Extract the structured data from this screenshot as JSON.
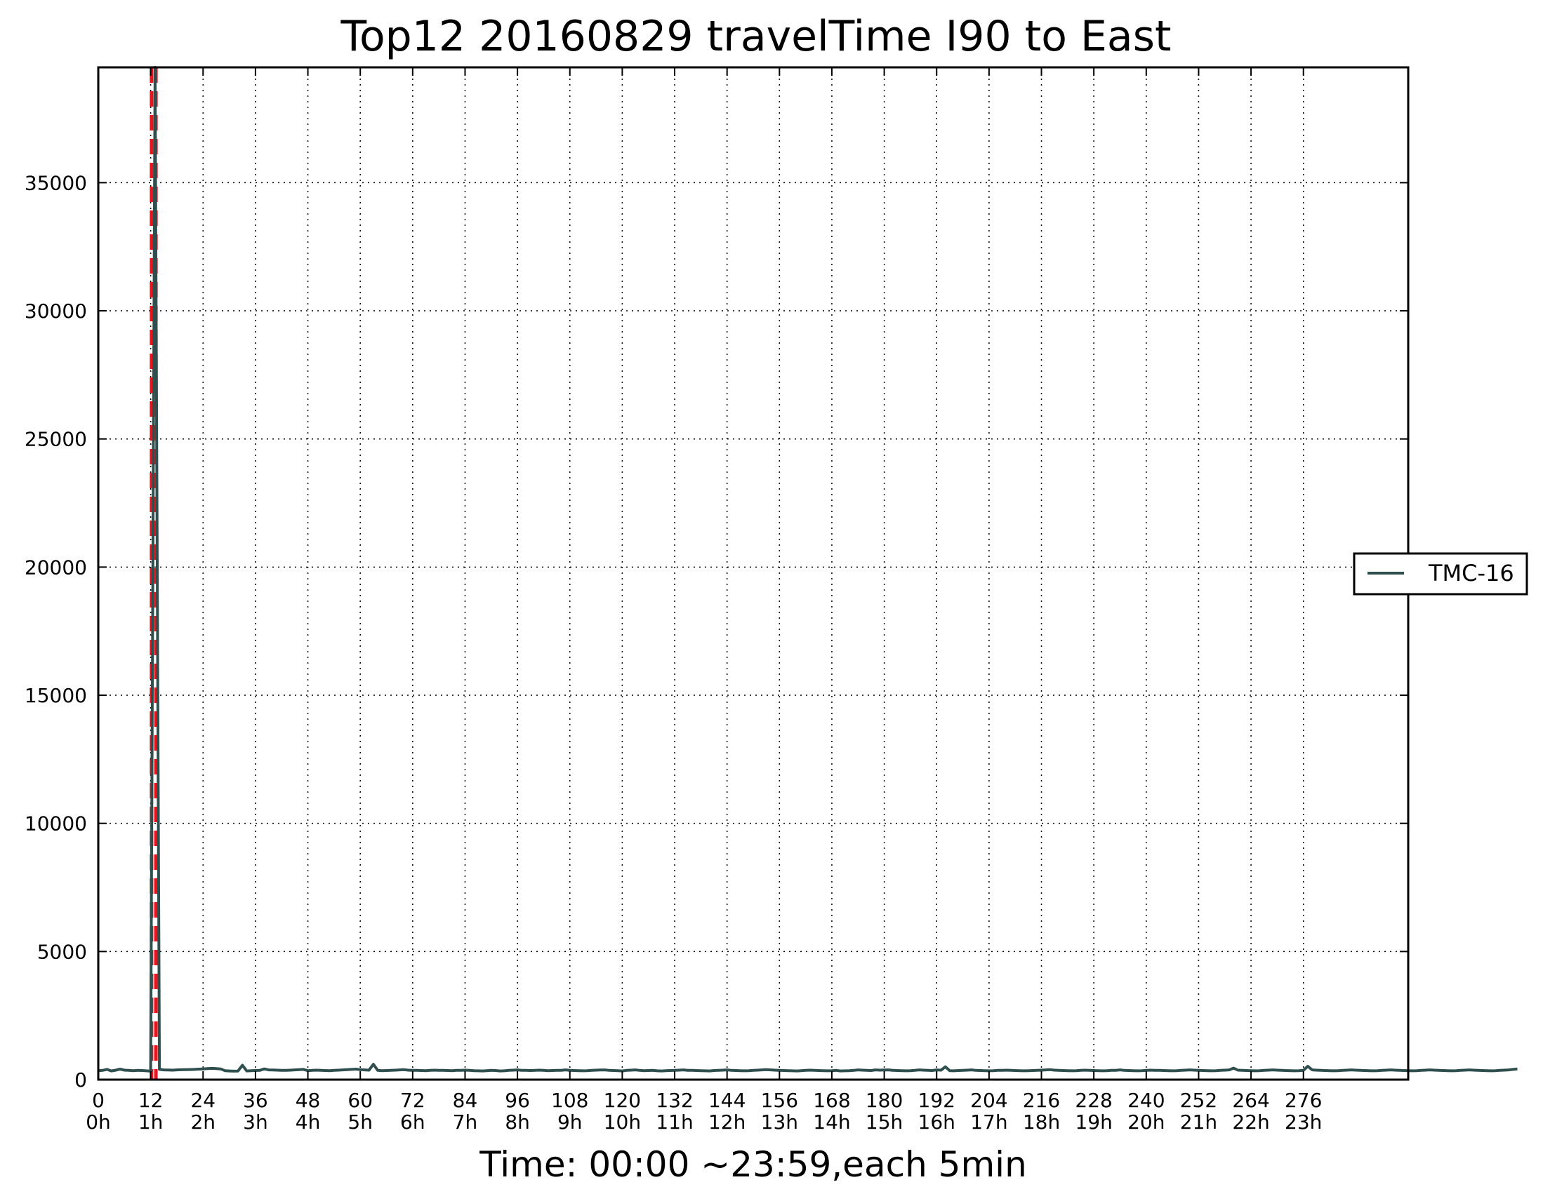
{
  "chart_data": {
    "type": "line",
    "title": "Top12 20160829 travelTime I90 to East",
    "xlabel": "Time: 00:00 ~23:59,each 5min",
    "ylabel": "",
    "xlim": [
      0,
      300
    ],
    "ylim": [
      0,
      39500
    ],
    "grid": true,
    "legend_position": "center-right, outside plot",
    "x_ticks": [
      0,
      12,
      24,
      36,
      48,
      60,
      72,
      84,
      96,
      108,
      120,
      132,
      144,
      156,
      168,
      180,
      192,
      204,
      216,
      228,
      240,
      252,
      264,
      276
    ],
    "x_tick_labels": [
      "0",
      "12",
      "24",
      "36",
      "48",
      "60",
      "72",
      "84",
      "96",
      "108",
      "120",
      "132",
      "144",
      "156",
      "168",
      "180",
      "192",
      "204",
      "216",
      "228",
      "240",
      "252",
      "264",
      "276"
    ],
    "x_tick_hours": [
      "0h",
      "1h",
      "2h",
      "3h",
      "4h",
      "5h",
      "6h",
      "7h",
      "8h",
      "9h",
      "10h",
      "11h",
      "12h",
      "13h",
      "14h",
      "15h",
      "16h",
      "17h",
      "18h",
      "19h",
      "20h",
      "21h",
      "22h",
      "23h"
    ],
    "y_ticks": [
      0,
      5000,
      10000,
      15000,
      20000,
      25000,
      30000,
      35000
    ],
    "y_tick_labels": [
      "0",
      "5000",
      "10000",
      "15000",
      "20000",
      "25000",
      "30000",
      "35000"
    ],
    "vlines": [
      {
        "x": 12.2,
        "color": "#e8141d",
        "style": "dashed"
      },
      {
        "x": 13.2,
        "color": "#e8141d",
        "style": "dashed"
      }
    ],
    "series": [
      {
        "name": "TMC-16",
        "color": "#2f4f4f",
        "x_start": 0,
        "x_step": 1,
        "values": [
          350,
          360,
          400,
          340,
          370,
          410,
          370,
          360,
          350,
          360,
          355,
          345,
          330,
          39500,
          400,
          380,
          375,
          370,
          380,
          385,
          390,
          395,
          400,
          410,
          420,
          430,
          440,
          430,
          420,
          350,
          340,
          330,
          335,
          560,
          340,
          350,
          355,
          360,
          420,
          380,
          375,
          370,
          365,
          360,
          370,
          380,
          390,
          400,
          350,
          360,
          370,
          365,
          355,
          350,
          360,
          370,
          380,
          390,
          400,
          410,
          390,
          380,
          370,
          600,
          360,
          350,
          355,
          360,
          370,
          380,
          390,
          370,
          365,
          360,
          355,
          350,
          360,
          370,
          365,
          360,
          355,
          350,
          360,
          365,
          370,
          360,
          350,
          345,
          340,
          350,
          360,
          355,
          340,
          345,
          360,
          370,
          380,
          365,
          360,
          355,
          360,
          370,
          360,
          350,
          355,
          360,
          365,
          380,
          360,
          355,
          350,
          345,
          350,
          360,
          370,
          375,
          380,
          360,
          355,
          350,
          340,
          360,
          370,
          380,
          360,
          350,
          355,
          360,
          345,
          340,
          350,
          355,
          360,
          370,
          380,
          365,
          360,
          355,
          350,
          345,
          340,
          355,
          360,
          370,
          380,
          360,
          355,
          350,
          345,
          350,
          360,
          370,
          380,
          390,
          380,
          370,
          360,
          355,
          350,
          345,
          340,
          350,
          360,
          370,
          360,
          355,
          350,
          345,
          350,
          360,
          340,
          345,
          350,
          360,
          380,
          370,
          360,
          355,
          380,
          370,
          375,
          380,
          360,
          355,
          350,
          345,
          350,
          360,
          380,
          370,
          360,
          355,
          380,
          370,
          500,
          350,
          345,
          355,
          360,
          370,
          380,
          360,
          355,
          350,
          345,
          350,
          360,
          365,
          370,
          360,
          355,
          350,
          345,
          350,
          355,
          360,
          370,
          380,
          390,
          370,
          360,
          355,
          350,
          345,
          350,
          360,
          370,
          360,
          355,
          350,
          345,
          350,
          360,
          365,
          380,
          360,
          355,
          350,
          345,
          350,
          360,
          370,
          365,
          360,
          355,
          350,
          345,
          350,
          360,
          370,
          380,
          370,
          360,
          355,
          350,
          345,
          350,
          360,
          370,
          380,
          450,
          370,
          360,
          355,
          350,
          345,
          350,
          360,
          370,
          380,
          370,
          360,
          355,
          350,
          345,
          350,
          360,
          520,
          380,
          370,
          360,
          355,
          350,
          345,
          350,
          360,
          370,
          380,
          370,
          360,
          355,
          350,
          345,
          350,
          360,
          370,
          380,
          370,
          360,
          355,
          350,
          345,
          350,
          360,
          370,
          380,
          370,
          360,
          355,
          350,
          345,
          350,
          360,
          370,
          380,
          370,
          360,
          355,
          350,
          345,
          350,
          360,
          370,
          380,
          400,
          420
        ]
      }
    ]
  }
}
